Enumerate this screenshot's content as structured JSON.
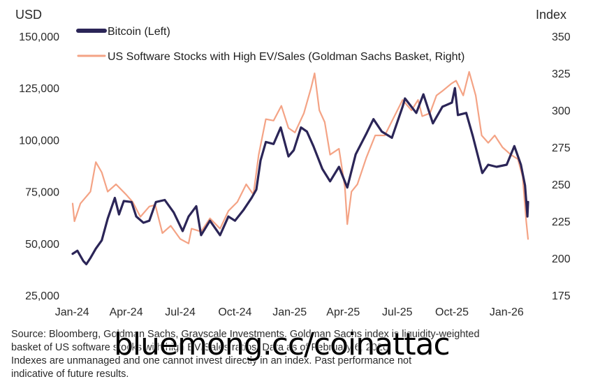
{
  "chart_data": {
    "type": "line",
    "left_axis": {
      "unit": "USD",
      "ticks": [
        "150,000",
        "125,000",
        "100,000",
        "75,000",
        "50,000",
        "25,000"
      ],
      "ylim": [
        25000,
        150000
      ]
    },
    "right_axis": {
      "unit": "Index",
      "ticks": [
        "350",
        "325",
        "300",
        "275",
        "250",
        "225",
        "200",
        "175"
      ],
      "ylim": [
        175,
        350
      ]
    },
    "x_ticks": [
      "Jan-24",
      "Apr-24",
      "Jul-24",
      "Oct-24",
      "Jan-25",
      "Apr-25",
      "Jul-25",
      "Oct-25",
      "Jan-26"
    ],
    "x_range": [
      "2024-01-02",
      "2026-02-06"
    ],
    "grid": false,
    "legend_placement": "top-left",
    "series": [
      {
        "name": "Bitcoin (Left)",
        "axis": "left",
        "color": "#2b2557",
        "points": [
          [
            "2024-01-02",
            45000
          ],
          [
            "2024-01-10",
            46500
          ],
          [
            "2024-01-20",
            41500
          ],
          [
            "2024-01-25",
            40000
          ],
          [
            "2024-02-01",
            43000
          ],
          [
            "2024-02-10",
            47500
          ],
          [
            "2024-02-20",
            51500
          ],
          [
            "2024-03-01",
            62000
          ],
          [
            "2024-03-13",
            72000
          ],
          [
            "2024-03-20",
            64000
          ],
          [
            "2024-03-28",
            70500
          ],
          [
            "2024-04-10",
            70000
          ],
          [
            "2024-04-18",
            63000
          ],
          [
            "2024-04-30",
            60000
          ],
          [
            "2024-05-10",
            61000
          ],
          [
            "2024-05-21",
            70000
          ],
          [
            "2024-06-05",
            71000
          ],
          [
            "2024-06-20",
            65000
          ],
          [
            "2024-07-05",
            56000
          ],
          [
            "2024-07-15",
            63000
          ],
          [
            "2024-07-28",
            68000
          ],
          [
            "2024-08-05",
            54000
          ],
          [
            "2024-08-20",
            61000
          ],
          [
            "2024-09-06",
            54000
          ],
          [
            "2024-09-20",
            63000
          ],
          [
            "2024-10-01",
            61000
          ],
          [
            "2024-10-15",
            66000
          ],
          [
            "2024-10-29",
            72000
          ],
          [
            "2024-11-06",
            76000
          ],
          [
            "2024-11-13",
            90000
          ],
          [
            "2024-11-22",
            99000
          ],
          [
            "2024-12-05",
            98000
          ],
          [
            "2024-12-17",
            106000
          ],
          [
            "2024-12-30",
            92000
          ],
          [
            "2025-01-08",
            95000
          ],
          [
            "2025-01-20",
            106000
          ],
          [
            "2025-01-30",
            104000
          ],
          [
            "2025-02-10",
            97000
          ],
          [
            "2025-02-25",
            86000
          ],
          [
            "2025-03-10",
            80000
          ],
          [
            "2025-03-25",
            87000
          ],
          [
            "2025-04-08",
            77000
          ],
          [
            "2025-04-22",
            93000
          ],
          [
            "2025-05-10",
            103000
          ],
          [
            "2025-05-22",
            110000
          ],
          [
            "2025-06-05",
            104000
          ],
          [
            "2025-06-22",
            101000
          ],
          [
            "2025-07-10",
            116000
          ],
          [
            "2025-07-14",
            120000
          ],
          [
            "2025-08-02",
            113000
          ],
          [
            "2025-08-14",
            122000
          ],
          [
            "2025-08-30",
            108000
          ],
          [
            "2025-09-15",
            116000
          ],
          [
            "2025-10-01",
            118000
          ],
          [
            "2025-10-06",
            125000
          ],
          [
            "2025-10-11",
            112000
          ],
          [
            "2025-10-25",
            113000
          ],
          [
            "2025-11-05",
            102000
          ],
          [
            "2025-11-21",
            84000
          ],
          [
            "2025-12-01",
            88000
          ],
          [
            "2025-12-15",
            87000
          ],
          [
            "2026-01-01",
            88000
          ],
          [
            "2026-01-14",
            97000
          ],
          [
            "2026-01-25",
            88000
          ],
          [
            "2026-02-01",
            78000
          ],
          [
            "2026-02-05",
            63000
          ],
          [
            "2026-02-06",
            70000
          ]
        ]
      },
      {
        "name": "US Software Stocks with High EV/Sales (Goldman Sachs Basket, Right)",
        "axis": "right",
        "color": "#f4a385",
        "points": [
          [
            "2024-01-02",
            237
          ],
          [
            "2024-01-05",
            225
          ],
          [
            "2024-01-15",
            237
          ],
          [
            "2024-02-01",
            245
          ],
          [
            "2024-02-10",
            265
          ],
          [
            "2024-02-20",
            258
          ],
          [
            "2024-03-01",
            245
          ],
          [
            "2024-03-15",
            250
          ],
          [
            "2024-04-01",
            243
          ],
          [
            "2024-04-12",
            238
          ],
          [
            "2024-04-25",
            228
          ],
          [
            "2024-05-10",
            235
          ],
          [
            "2024-05-20",
            236
          ],
          [
            "2024-06-01",
            217
          ],
          [
            "2024-06-15",
            222
          ],
          [
            "2024-07-01",
            213
          ],
          [
            "2024-07-15",
            210
          ],
          [
            "2024-07-20",
            220
          ],
          [
            "2024-08-05",
            218
          ],
          [
            "2024-08-20",
            227
          ],
          [
            "2024-09-06",
            220
          ],
          [
            "2024-09-20",
            232
          ],
          [
            "2024-10-05",
            238
          ],
          [
            "2024-10-20",
            250
          ],
          [
            "2024-11-01",
            243
          ],
          [
            "2024-11-10",
            270
          ],
          [
            "2024-11-22",
            294
          ],
          [
            "2024-12-05",
            293
          ],
          [
            "2024-12-18",
            303
          ],
          [
            "2024-12-30",
            288
          ],
          [
            "2025-01-10",
            285
          ],
          [
            "2025-01-25",
            298
          ],
          [
            "2025-02-06",
            315
          ],
          [
            "2025-02-12",
            325
          ],
          [
            "2025-02-20",
            300
          ],
          [
            "2025-03-01",
            292
          ],
          [
            "2025-03-10",
            270
          ],
          [
            "2025-03-25",
            274
          ],
          [
            "2025-04-04",
            248
          ],
          [
            "2025-04-08",
            223
          ],
          [
            "2025-04-15",
            245
          ],
          [
            "2025-04-25",
            250
          ],
          [
            "2025-05-10",
            268
          ],
          [
            "2025-05-25",
            283
          ],
          [
            "2025-06-10",
            283
          ],
          [
            "2025-06-25",
            295
          ],
          [
            "2025-07-10",
            307
          ],
          [
            "2025-07-25",
            300
          ],
          [
            "2025-08-05",
            307
          ],
          [
            "2025-08-12",
            296
          ],
          [
            "2025-08-25",
            298
          ],
          [
            "2025-09-05",
            310
          ],
          [
            "2025-09-15",
            313
          ],
          [
            "2025-09-30",
            318
          ],
          [
            "2025-10-08",
            320
          ],
          [
            "2025-10-20",
            310
          ],
          [
            "2025-10-30",
            326
          ],
          [
            "2025-11-10",
            310
          ],
          [
            "2025-11-20",
            283
          ],
          [
            "2025-12-01",
            278
          ],
          [
            "2025-12-12",
            283
          ],
          [
            "2025-12-25",
            275
          ],
          [
            "2026-01-08",
            270
          ],
          [
            "2026-01-20",
            267
          ],
          [
            "2026-01-28",
            255
          ],
          [
            "2026-02-03",
            225
          ],
          [
            "2026-02-06",
            213
          ]
        ]
      }
    ]
  },
  "footnote": {
    "line1": "Source: Bloomberg, Goldman Sachs, Grayscale Investments. Goldman Sachs index is liquidity-weighted",
    "line2": "basket of US software stocks with high EV/Sales ratios. Data as of February 6, 2026.",
    "line3": "Indexes are unmanaged and one cannot invest directly in an index. Past performance not",
    "line4": "indicative of future results."
  },
  "watermark": "bluemong.cc/coinattac"
}
